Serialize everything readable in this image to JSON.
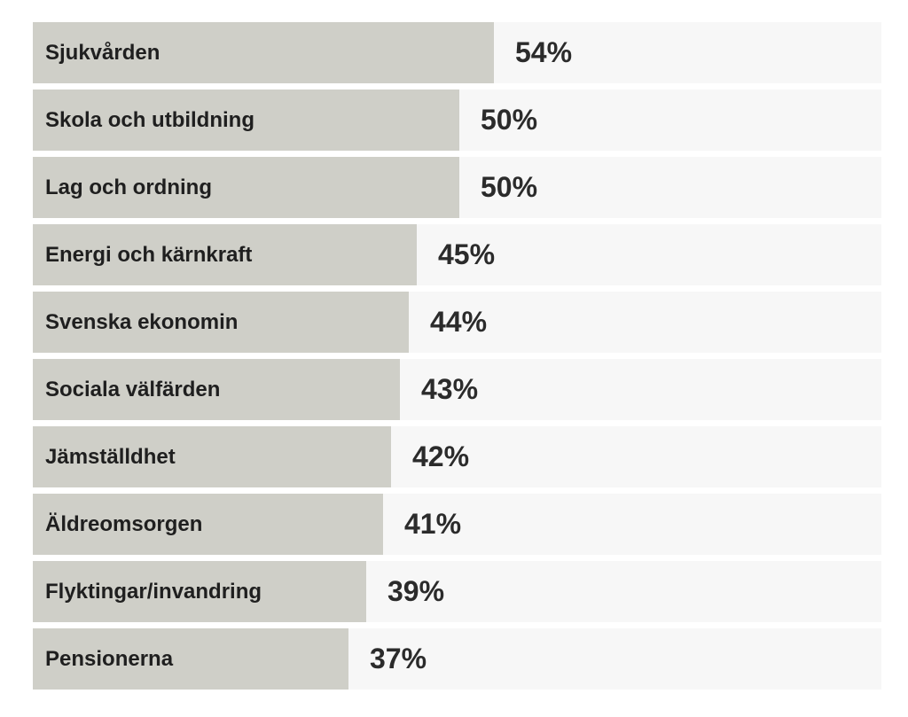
{
  "chart_data": {
    "type": "bar",
    "orientation": "horizontal",
    "categories": [
      "Sjukvården",
      "Skola och utbildning",
      "Lag och ordning",
      "Energi och kärnkraft",
      "Svenska ekonomin",
      "Sociala välfärden",
      "Jämställdhet",
      "Äldreomsorgen",
      "Flyktingar/invandring",
      "Pensionerna"
    ],
    "values": [
      54,
      50,
      50,
      45,
      44,
      43,
      42,
      41,
      39,
      37
    ],
    "value_labels": [
      "54%",
      "50%",
      "50%",
      "45%",
      "44%",
      "43%",
      "42%",
      "41%",
      "39%",
      "37%"
    ],
    "unit": "%",
    "xlim": [
      0,
      100
    ],
    "grid": false,
    "legend": "none"
  },
  "colors": {
    "bar": "#cfcfc8",
    "track": "#f7f7f7",
    "label_text": "#1f1f1f",
    "value_text": "#2b2b2b"
  }
}
